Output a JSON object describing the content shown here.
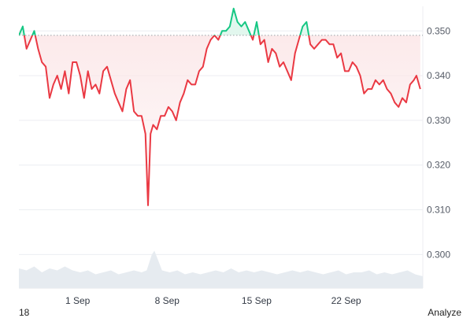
{
  "chart_data": {
    "type": "line",
    "subtype": "price-with-baseline-and-volume",
    "y_ticks": [
      "0.350",
      "0.340",
      "0.330",
      "0.320",
      "0.310",
      "0.300"
    ],
    "ylim": [
      0.2925,
      0.3555
    ],
    "x_ticks": [
      {
        "label": "1 Sep",
        "day": 1
      },
      {
        "label": "8 Sep",
        "day": 8
      },
      {
        "label": "15 Sep",
        "day": 15
      },
      {
        "label": "22 Sep",
        "day": 22
      }
    ],
    "xlim_days": [
      -3.6,
      28.0
    ],
    "baseline": 0.349,
    "colors": {
      "above": "#16c784",
      "below": "#ea3943",
      "below_fill": "#fbe7e8",
      "above_fill": "#e2f7ee",
      "volume": "#e6ebf0",
      "baseline": "#9aa0a6"
    },
    "price_points": [
      [
        -3.6,
        0.349
      ],
      [
        -3.3,
        0.351
      ],
      [
        -3.0,
        0.346
      ],
      [
        -2.7,
        0.348
      ],
      [
        -2.4,
        0.35
      ],
      [
        -2.1,
        0.346
      ],
      [
        -1.8,
        0.343
      ],
      [
        -1.5,
        0.342
      ],
      [
        -1.2,
        0.335
      ],
      [
        -0.9,
        0.338
      ],
      [
        -0.6,
        0.34
      ],
      [
        -0.3,
        0.337
      ],
      [
        0.0,
        0.341
      ],
      [
        0.3,
        0.336
      ],
      [
        0.6,
        0.343
      ],
      [
        0.9,
        0.343
      ],
      [
        1.2,
        0.34
      ],
      [
        1.5,
        0.335
      ],
      [
        1.8,
        0.341
      ],
      [
        2.1,
        0.337
      ],
      [
        2.4,
        0.338
      ],
      [
        2.7,
        0.336
      ],
      [
        3.0,
        0.341
      ],
      [
        3.3,
        0.342
      ],
      [
        3.6,
        0.339
      ],
      [
        3.9,
        0.336
      ],
      [
        4.2,
        0.334
      ],
      [
        4.5,
        0.332
      ],
      [
        4.8,
        0.337
      ],
      [
        5.1,
        0.339
      ],
      [
        5.4,
        0.332
      ],
      [
        5.7,
        0.331
      ],
      [
        6.0,
        0.331
      ],
      [
        6.3,
        0.327
      ],
      [
        6.5,
        0.311
      ],
      [
        6.7,
        0.327
      ],
      [
        6.9,
        0.329
      ],
      [
        7.2,
        0.328
      ],
      [
        7.5,
        0.331
      ],
      [
        7.8,
        0.331
      ],
      [
        8.1,
        0.333
      ],
      [
        8.4,
        0.332
      ],
      [
        8.7,
        0.33
      ],
      [
        9.0,
        0.334
      ],
      [
        9.3,
        0.336
      ],
      [
        9.6,
        0.339
      ],
      [
        9.9,
        0.338
      ],
      [
        10.2,
        0.338
      ],
      [
        10.5,
        0.341
      ],
      [
        10.8,
        0.342
      ],
      [
        11.1,
        0.346
      ],
      [
        11.4,
        0.348
      ],
      [
        11.7,
        0.349
      ],
      [
        12.0,
        0.348
      ],
      [
        12.3,
        0.35
      ],
      [
        12.6,
        0.35
      ],
      [
        12.9,
        0.351
      ],
      [
        13.2,
        0.355
      ],
      [
        13.5,
        0.352
      ],
      [
        13.8,
        0.351
      ],
      [
        14.1,
        0.352
      ],
      [
        14.4,
        0.35
      ],
      [
        14.7,
        0.348
      ],
      [
        15.0,
        0.352
      ],
      [
        15.3,
        0.347
      ],
      [
        15.6,
        0.348
      ],
      [
        15.9,
        0.343
      ],
      [
        16.2,
        0.346
      ],
      [
        16.5,
        0.345
      ],
      [
        16.8,
        0.342
      ],
      [
        17.1,
        0.343
      ],
      [
        17.4,
        0.341
      ],
      [
        17.7,
        0.339
      ],
      [
        18.0,
        0.345
      ],
      [
        18.3,
        0.348
      ],
      [
        18.6,
        0.351
      ],
      [
        18.9,
        0.352
      ],
      [
        19.2,
        0.347
      ],
      [
        19.5,
        0.346
      ],
      [
        19.8,
        0.347
      ],
      [
        20.1,
        0.348
      ],
      [
        20.4,
        0.348
      ],
      [
        20.7,
        0.347
      ],
      [
        21.0,
        0.347
      ],
      [
        21.3,
        0.344
      ],
      [
        21.6,
        0.345
      ],
      [
        21.9,
        0.341
      ],
      [
        22.2,
        0.341
      ],
      [
        22.5,
        0.343
      ],
      [
        22.8,
        0.342
      ],
      [
        23.1,
        0.34
      ],
      [
        23.4,
        0.336
      ],
      [
        23.7,
        0.337
      ],
      [
        24.0,
        0.337
      ],
      [
        24.3,
        0.339
      ],
      [
        24.6,
        0.338
      ],
      [
        24.9,
        0.339
      ],
      [
        25.2,
        0.337
      ],
      [
        25.5,
        0.336
      ],
      [
        25.8,
        0.334
      ],
      [
        26.1,
        0.333
      ],
      [
        26.4,
        0.335
      ],
      [
        26.7,
        0.334
      ],
      [
        27.0,
        0.338
      ],
      [
        27.3,
        0.339
      ],
      [
        27.5,
        0.34
      ],
      [
        27.8,
        0.337
      ]
    ],
    "volume_points": [
      [
        -3.6,
        0.5
      ],
      [
        -3.0,
        0.45
      ],
      [
        -2.4,
        0.55
      ],
      [
        -1.8,
        0.4
      ],
      [
        -1.2,
        0.5
      ],
      [
        -0.6,
        0.45
      ],
      [
        0.0,
        0.55
      ],
      [
        0.6,
        0.45
      ],
      [
        1.2,
        0.4
      ],
      [
        1.8,
        0.45
      ],
      [
        2.4,
        0.35
      ],
      [
        3.0,
        0.4
      ],
      [
        3.6,
        0.45
      ],
      [
        4.2,
        0.35
      ],
      [
        4.8,
        0.4
      ],
      [
        5.4,
        0.45
      ],
      [
        6.0,
        0.4
      ],
      [
        6.4,
        0.45
      ],
      [
        6.8,
        0.85
      ],
      [
        7.0,
        0.95
      ],
      [
        7.3,
        0.7
      ],
      [
        7.6,
        0.45
      ],
      [
        8.2,
        0.4
      ],
      [
        8.8,
        0.45
      ],
      [
        9.4,
        0.35
      ],
      [
        10.0,
        0.4
      ],
      [
        10.6,
        0.35
      ],
      [
        11.2,
        0.4
      ],
      [
        11.8,
        0.45
      ],
      [
        12.4,
        0.4
      ],
      [
        13.0,
        0.5
      ],
      [
        13.6,
        0.4
      ],
      [
        14.2,
        0.45
      ],
      [
        14.8,
        0.4
      ],
      [
        15.4,
        0.45
      ],
      [
        16.0,
        0.4
      ],
      [
        16.6,
        0.35
      ],
      [
        17.2,
        0.4
      ],
      [
        17.8,
        0.45
      ],
      [
        18.4,
        0.4
      ],
      [
        19.0,
        0.45
      ],
      [
        19.6,
        0.4
      ],
      [
        20.2,
        0.35
      ],
      [
        20.8,
        0.4
      ],
      [
        21.4,
        0.45
      ],
      [
        22.0,
        0.35
      ],
      [
        22.6,
        0.4
      ],
      [
        23.2,
        0.4
      ],
      [
        23.8,
        0.45
      ],
      [
        24.4,
        0.35
      ],
      [
        25.0,
        0.4
      ],
      [
        25.6,
        0.35
      ],
      [
        26.2,
        0.4
      ],
      [
        26.8,
        0.45
      ],
      [
        27.4,
        0.35
      ],
      [
        28.0,
        0.3
      ]
    ]
  },
  "footer": {
    "left_edge_label": "18",
    "analyze_label": "Analyze"
  }
}
